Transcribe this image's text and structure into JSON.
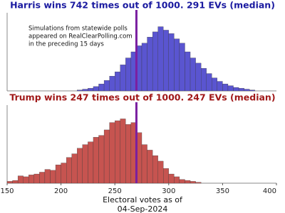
{
  "chart_data": [
    {
      "type": "histogram",
      "title": "Harris wins 742 times out of 1000. 291 EVs (median)",
      "title_color": "#1a1aa0",
      "annotation": [
        "Simulations from statewide polls",
        "appeared on RealClearPolling.com",
        "in the preceding 15 days"
      ],
      "bins": [
        215,
        220,
        225,
        230,
        235,
        240,
        245,
        250,
        255,
        260,
        265,
        270,
        275,
        280,
        285,
        290,
        295,
        300,
        305,
        310,
        315,
        320,
        325,
        330,
        335,
        340,
        345,
        350,
        355,
        360,
        365,
        370,
        375,
        380
      ],
      "values": [
        1,
        2,
        3,
        5,
        8,
        12,
        17,
        22,
        30,
        38,
        45,
        52,
        55,
        62,
        68,
        74,
        70,
        66,
        60,
        55,
        45,
        38,
        32,
        26,
        20,
        15,
        11,
        8,
        6,
        4,
        3,
        2,
        1
      ],
      "color": "#5a55d0",
      "xlim": [
        150,
        400
      ],
      "ylim": [
        0,
        90
      ],
      "reference_line": 270,
      "reference_color": "#7a1fa0"
    },
    {
      "type": "histogram",
      "title": "Trump wins 247 times out of 1000. 247 EVs (median)",
      "title_color": "#a01818",
      "bins": [
        150,
        155,
        160,
        165,
        170,
        175,
        180,
        185,
        190,
        195,
        200,
        205,
        210,
        215,
        220,
        225,
        230,
        235,
        240,
        245,
        250,
        255,
        260,
        265,
        270,
        275,
        280,
        285,
        290,
        295,
        300,
        305,
        310,
        315,
        320,
        325,
        330
      ],
      "values": [
        2,
        3,
        8,
        7,
        9,
        10,
        12,
        15,
        14,
        20,
        22,
        28,
        32,
        38,
        42,
        45,
        50,
        52,
        58,
        66,
        68,
        70,
        64,
        66,
        55,
        42,
        36,
        30,
        24,
        16,
        10,
        7,
        4,
        3,
        2,
        1
      ],
      "color": "#c65450",
      "xlim": [
        150,
        400
      ],
      "ylim": [
        0,
        85
      ],
      "reference_line": 270,
      "reference_color": "#7a1fa0",
      "xticks": [
        150,
        200,
        250,
        300,
        350,
        400
      ],
      "xlabel": [
        "Electoral votes as of",
        "04-Sep-2024"
      ]
    }
  ]
}
